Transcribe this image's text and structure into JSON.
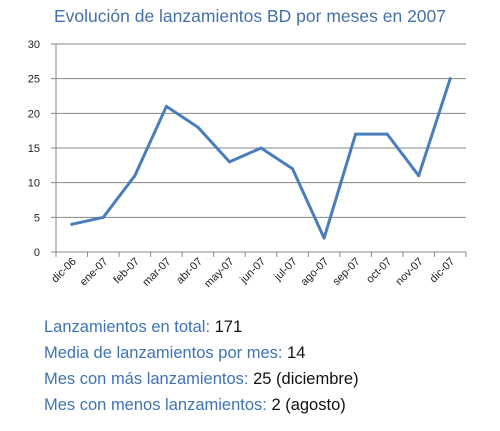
{
  "chart_data": {
    "type": "line",
    "title": "Evolución de lanzamientos BD por meses en 2007",
    "xlabel": "",
    "ylabel": "",
    "categories": [
      "dic-06",
      "ene-07",
      "feb-07",
      "mar-07",
      "abr-07",
      "may-07",
      "jun-07",
      "jul-07",
      "ago-07",
      "sep-07",
      "oct-07",
      "nov-07",
      "dic-07"
    ],
    "series": [
      {
        "values": [
          4,
          5,
          11,
          21,
          18,
          13,
          15,
          12,
          2,
          17,
          17,
          11,
          25
        ]
      }
    ],
    "ylim": [
      0,
      30
    ],
    "yticks": [
      0,
      5,
      10,
      15,
      20,
      25,
      30
    ],
    "grid": true,
    "legend": "none",
    "line_color": "#4A7EBB"
  },
  "stats": [
    {
      "label": "Lanzamientos en total:",
      "value": "171"
    },
    {
      "label": "Media de lanzamientos por mes:",
      "value": "14"
    },
    {
      "label": "Mes con más lanzamientos:",
      "value": "25 (diciembre)"
    },
    {
      "label": "Mes con menos lanzamientos:",
      "value": "2 (agosto)"
    }
  ]
}
